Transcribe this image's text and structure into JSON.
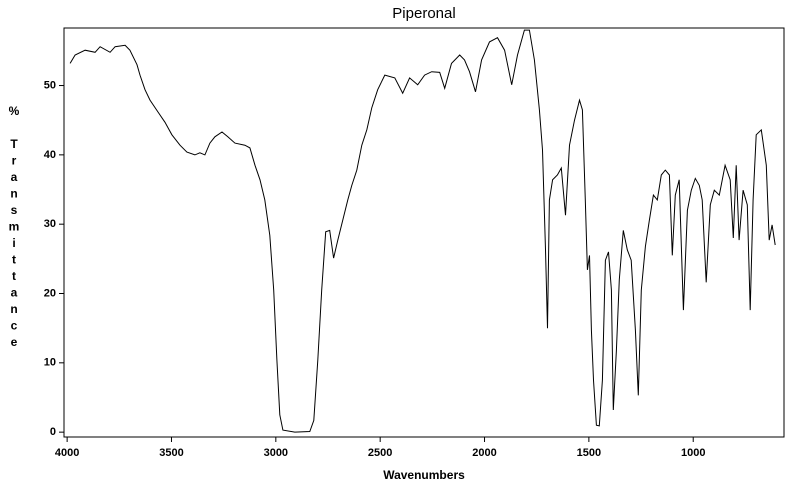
{
  "chart_data": {
    "type": "line",
    "title": "Piperonal",
    "xlabel": "Wavenumbers",
    "ylabel": "% Transmittance",
    "color": "#000000",
    "xlim": [
      4015,
      565
    ],
    "ylim": [
      -0.7,
      58.3
    ],
    "xticks": [
      4000,
      3500,
      3000,
      2500,
      2000,
      1500,
      1000
    ],
    "yticks": [
      0,
      10,
      20,
      30,
      40,
      50
    ],
    "x": [
      3986,
      3962,
      3914,
      3866,
      3842,
      3794,
      3770,
      3722,
      3699,
      3665,
      3651,
      3627,
      3603,
      3565,
      3531,
      3498,
      3459,
      3426,
      3388,
      3364,
      3340,
      3316,
      3292,
      3258,
      3230,
      3196,
      3148,
      3124,
      3100,
      3076,
      3053,
      3029,
      3010,
      2995,
      2981,
      2966,
      2909,
      2837,
      2818,
      2799,
      2780,
      2761,
      2742,
      2723,
      2703,
      2679,
      2655,
      2636,
      2612,
      2588,
      2564,
      2540,
      2512,
      2478,
      2430,
      2392,
      2359,
      2320,
      2287,
      2253,
      2215,
      2191,
      2158,
      2119,
      2096,
      2072,
      2043,
      2014,
      1976,
      1938,
      1904,
      1870,
      1842,
      1809,
      1785,
      1761,
      1737,
      1722,
      1708,
      1698,
      1689,
      1674,
      1651,
      1632,
      1612,
      1593,
      1569,
      1545,
      1531,
      1517,
      1507,
      1497,
      1488,
      1478,
      1464,
      1450,
      1435,
      1421,
      1406,
      1392,
      1383,
      1368,
      1354,
      1335,
      1316,
      1297,
      1277,
      1263,
      1249,
      1229,
      1210,
      1191,
      1172,
      1153,
      1134,
      1114,
      1100,
      1086,
      1067,
      1047,
      1028,
      1009,
      990,
      971,
      957,
      938,
      918,
      899,
      875,
      847,
      823,
      808,
      794,
      780,
      761,
      741,
      727,
      713,
      698,
      674,
      650,
      636,
      622,
      607
    ],
    "values": [
      53.2,
      54.4,
      55.1,
      54.8,
      55.6,
      54.8,
      55.6,
      55.8,
      55.1,
      53.0,
      51.5,
      49.4,
      47.9,
      46.2,
      44.7,
      42.9,
      41.4,
      40.4,
      40.0,
      40.3,
      40.0,
      41.7,
      42.6,
      43.3,
      42.6,
      41.7,
      41.4,
      41.0,
      38.5,
      36.4,
      33.5,
      28.4,
      20.5,
      10.4,
      2.5,
      0.3,
      0.0,
      0.1,
      1.7,
      10.4,
      20.5,
      28.9,
      29.1,
      25.1,
      27.7,
      30.6,
      33.5,
      35.6,
      37.8,
      41.4,
      43.6,
      46.8,
      49.4,
      51.5,
      51.1,
      48.9,
      51.1,
      50.1,
      51.5,
      52.0,
      51.9,
      49.6,
      53.2,
      54.4,
      53.7,
      52.0,
      49.1,
      53.7,
      56.3,
      56.9,
      55.1,
      50.1,
      54.4,
      58.0,
      58.0,
      53.7,
      46.5,
      40.7,
      26.3,
      15.0,
      33.5,
      36.4,
      37.1,
      38.1,
      31.3,
      41.4,
      45.0,
      47.9,
      46.5,
      33.5,
      23.4,
      25.5,
      14.7,
      7.5,
      1.0,
      0.9,
      7.5,
      24.8,
      26.0,
      20.5,
      3.2,
      11.8,
      22.0,
      29.1,
      26.3,
      24.8,
      14.7,
      5.3,
      20.5,
      26.8,
      30.6,
      34.2,
      33.5,
      37.1,
      37.8,
      37.1,
      25.5,
      34.2,
      36.4,
      17.6,
      32.0,
      34.9,
      36.6,
      35.6,
      33.5,
      21.6,
      32.8,
      34.9,
      34.2,
      38.5,
      36.4,
      28.0,
      38.5,
      27.7,
      34.9,
      32.8,
      17.6,
      33.5,
      42.9,
      43.6,
      38.5,
      27.7,
      29.9,
      27.0
    ]
  }
}
